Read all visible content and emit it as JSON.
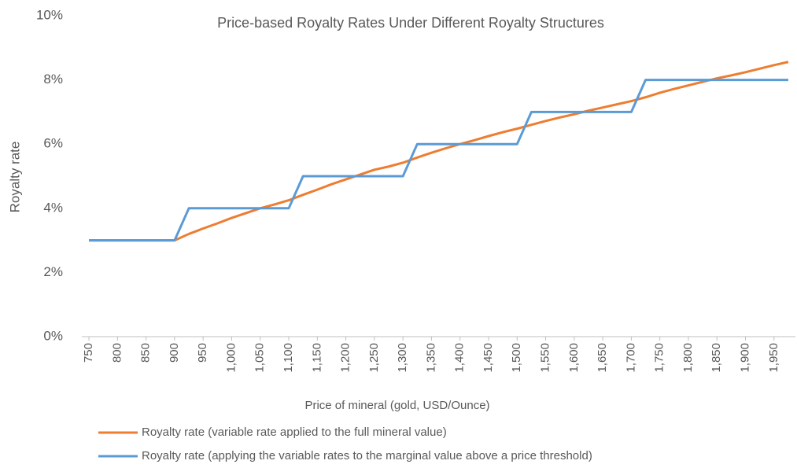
{
  "chart_data": {
    "type": "line",
    "title": "Price-based Royalty Rates Under Different Royalty Structures",
    "x_label": "Price of mineral (gold, USD/Ounce)",
    "y_label": "Royalty rate",
    "x": [
      750,
      775,
      800,
      825,
      850,
      875,
      900,
      925,
      950,
      975,
      1000,
      1025,
      1050,
      1075,
      1100,
      1125,
      1150,
      1175,
      1200,
      1225,
      1250,
      1275,
      1300,
      1325,
      1350,
      1375,
      1400,
      1425,
      1450,
      1475,
      1500,
      1525,
      1550,
      1575,
      1600,
      1625,
      1650,
      1675,
      1700,
      1725,
      1750,
      1775,
      1800,
      1825,
      1850,
      1875,
      1900,
      1925,
      1950,
      1975
    ],
    "series": [
      {
        "name": "Royalty rate (variable rate applied to the full mineral value)",
        "color": "#ed7d31",
        "values": [
          3,
          3,
          3,
          3,
          3,
          3,
          3,
          3.2,
          3.37,
          3.53,
          3.7,
          3.85,
          4.0,
          4.12,
          4.25,
          4.42,
          4.58,
          4.75,
          4.9,
          5.05,
          5.2,
          5.3,
          5.42,
          5.58,
          5.73,
          5.87,
          6.0,
          6.12,
          6.25,
          6.37,
          6.48,
          6.6,
          6.72,
          6.83,
          6.93,
          7.04,
          7.14,
          7.24,
          7.34,
          7.46,
          7.6,
          7.72,
          7.83,
          7.94,
          8.05,
          8.14,
          8.24,
          8.35,
          8.46,
          8.56
        ]
      },
      {
        "name": "Royalty rate (applying the variable rates to the marginal value above a price threshold)",
        "color": "#5b9bd5",
        "values": [
          3,
          3,
          3,
          3,
          3,
          3,
          3,
          4,
          4,
          4,
          4,
          4,
          4,
          4,
          4,
          5,
          5,
          5,
          5,
          5,
          5,
          5,
          5,
          6,
          6,
          6,
          6,
          6,
          6,
          6,
          6,
          7,
          7,
          7,
          7,
          7,
          7,
          7,
          7,
          8,
          8,
          8,
          8,
          8,
          8,
          8,
          8,
          8,
          8,
          8
        ]
      }
    ],
    "xlim": [
      737.5,
      1987.5
    ],
    "xticks": [
      750,
      800,
      850,
      900,
      950,
      {
        "value": 1000,
        "label": "1,000"
      },
      {
        "value": 1050,
        "label": "1,050"
      },
      {
        "value": 1100,
        "label": "1,100"
      },
      {
        "value": 1150,
        "label": "1,150"
      },
      {
        "value": 1200,
        "label": "1,200"
      },
      {
        "value": 1250,
        "label": "1,250"
      },
      {
        "value": 1300,
        "label": "1,300"
      },
      {
        "value": 1350,
        "label": "1,350"
      },
      {
        "value": 1400,
        "label": "1,400"
      },
      {
        "value": 1450,
        "label": "1,450"
      },
      {
        "value": 1500,
        "label": "1,500"
      },
      {
        "value": 1550,
        "label": "1,550"
      },
      {
        "value": 1600,
        "label": "1,600"
      },
      {
        "value": 1650,
        "label": "1,650"
      },
      {
        "value": 1700,
        "label": "1,700"
      },
      {
        "value": 1750,
        "label": "1,750"
      },
      {
        "value": 1800,
        "label": "1,800"
      },
      {
        "value": 1850,
        "label": "1,850"
      },
      {
        "value": 1900,
        "label": "1,900"
      },
      {
        "value": 1950,
        "label": "1,950"
      }
    ],
    "ylim": [
      0,
      10
    ],
    "yticks": [
      {
        "value": 0,
        "label": "0%"
      },
      {
        "value": 2,
        "label": "2%"
      },
      {
        "value": 4,
        "label": "4%"
      },
      {
        "value": 6,
        "label": "6%"
      },
      {
        "value": 8,
        "label": "8%"
      },
      {
        "value": 10,
        "label": "10%"
      }
    ],
    "grid": false,
    "legend": "bottom"
  }
}
